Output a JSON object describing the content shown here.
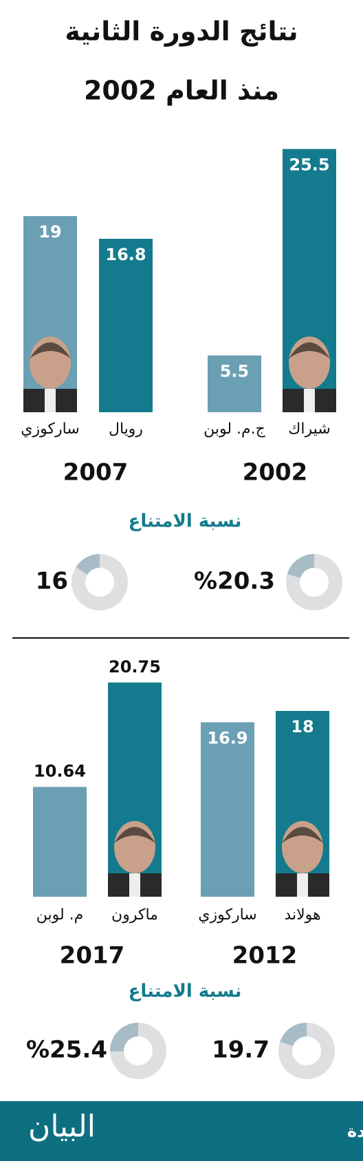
{
  "header": {
    "title": [
      "نتائج الدورة الثانية",
      "منذ العام 2002"
    ]
  },
  "chart_data": [
    {
      "type": "bar",
      "title": "2002",
      "categories": [
        "شيراك",
        "ج.م. لوبن"
      ],
      "values": [
        25.5,
        5.5
      ],
      "colors": [
        "#137b8d",
        "#6b9fb4"
      ]
    },
    {
      "type": "bar",
      "title": "2007",
      "categories": [
        "رويال",
        "ساركوزي"
      ],
      "values": [
        16.8,
        19
      ],
      "colors": [
        "#137b8d",
        "#6b9fb4"
      ]
    },
    {
      "type": "bar",
      "title": "2012",
      "categories": [
        "هولاند",
        "ساركوزي"
      ],
      "values": [
        18,
        16.9
      ],
      "colors": [
        "#137b8d",
        "#6b9fb4"
      ]
    },
    {
      "type": "bar",
      "title": "2017",
      "categories": [
        "ماكرون",
        "م. لوبن"
      ],
      "values": [
        20.75,
        10.64
      ],
      "colors": [
        "#137b8d",
        "#6b9fb4"
      ]
    },
    {
      "type": "pie",
      "title": "نسبة الامتناع",
      "values": [
        20.3
      ],
      "value_labels": [
        "%20.3"
      ]
    },
    {
      "type": "pie",
      "values": [
        16
      ]
    },
    {
      "type": "pie",
      "title": "نسبة الامتناع",
      "values": [
        19.7
      ]
    },
    {
      "type": "pie",
      "values": [
        25.4
      ],
      "value_labels": [
        "%25.4"
      ]
    }
  ],
  "footer": {
    "credit": "غرافيك: محمد أبوعبيدة",
    "logo": "البيان"
  }
}
